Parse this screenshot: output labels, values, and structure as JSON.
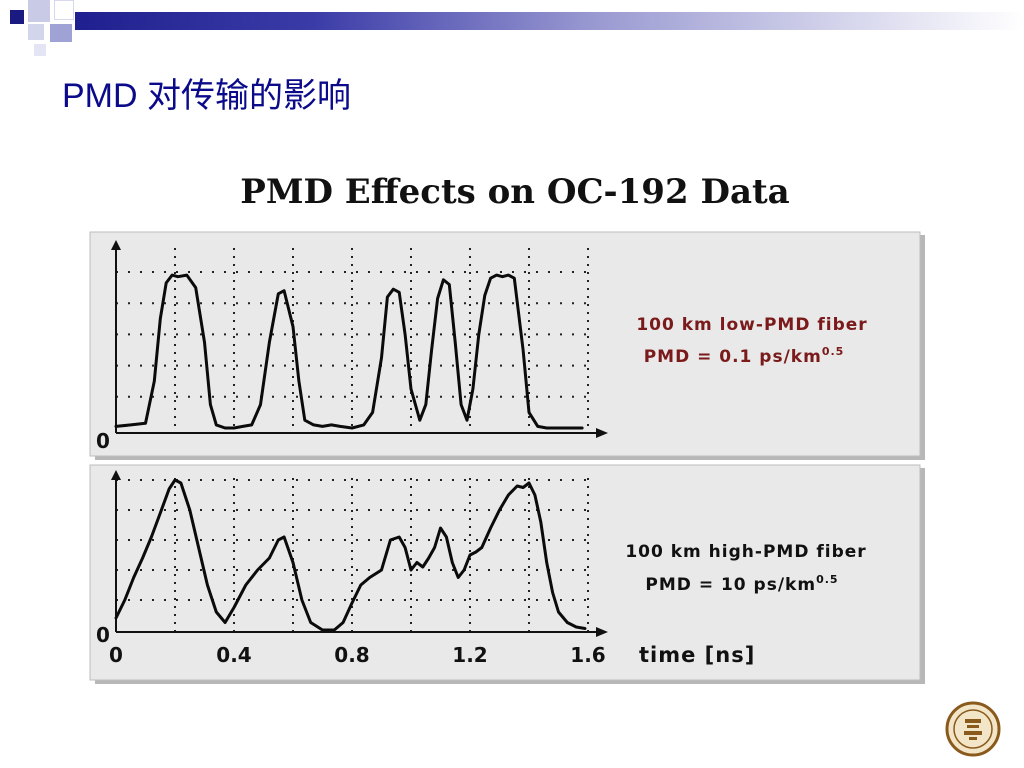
{
  "slide": {
    "title": "PMD 对传输的影响"
  },
  "colors": {
    "title_blue": "#0a0a8a",
    "panel_bg": "#e9e9e9",
    "label_red": "#7a1a1a"
  },
  "chart_data": [
    {
      "type": "line",
      "title": "PMD Effects on OC-192 Data",
      "xlabel": "time [ns]",
      "xlim": [
        0,
        1.6
      ],
      "ylim": [
        0,
        1
      ],
      "grid": true,
      "y_tick_label": "0",
      "annotation": {
        "line1": "100 km low-PMD fiber",
        "line2_prefix": "PMD = 0.1 ps/km",
        "line2_exponent": "0.5"
      },
      "series": [
        {
          "x": [
            0.0,
            0.05,
            0.1,
            0.13,
            0.15,
            0.17,
            0.19,
            0.21,
            0.24,
            0.27,
            0.3,
            0.32,
            0.34,
            0.37,
            0.4,
            0.43,
            0.46,
            0.49,
            0.52,
            0.55,
            0.57,
            0.6,
            0.62,
            0.64,
            0.67,
            0.7,
            0.73,
            0.76,
            0.8,
            0.84,
            0.87,
            0.9,
            0.92,
            0.94,
            0.96,
            0.98,
            1.0,
            1.03,
            1.05,
            1.07,
            1.09,
            1.11,
            1.13,
            1.15,
            1.17,
            1.19,
            1.21,
            1.23,
            1.25,
            1.27,
            1.29,
            1.31,
            1.33,
            1.35,
            1.38,
            1.4,
            1.43,
            1.46,
            1.48,
            1.5,
            1.52,
            1.55,
            1.58
          ],
          "y": [
            0.01,
            0.02,
            0.03,
            0.3,
            0.7,
            0.93,
            0.98,
            0.97,
            0.98,
            0.9,
            0.55,
            0.15,
            0.02,
            0.0,
            0.0,
            0.01,
            0.02,
            0.15,
            0.55,
            0.86,
            0.88,
            0.65,
            0.3,
            0.05,
            0.02,
            0.01,
            0.02,
            0.01,
            0.0,
            0.02,
            0.1,
            0.45,
            0.84,
            0.89,
            0.87,
            0.6,
            0.25,
            0.05,
            0.15,
            0.5,
            0.83,
            0.95,
            0.92,
            0.55,
            0.15,
            0.05,
            0.25,
            0.6,
            0.85,
            0.96,
            0.98,
            0.97,
            0.98,
            0.96,
            0.5,
            0.1,
            0.01,
            0.0,
            0.0,
            0.0,
            0.0,
            0.0,
            0.0
          ]
        }
      ]
    },
    {
      "type": "line",
      "xlabel": "time [ns]",
      "xlim": [
        0,
        1.6
      ],
      "ylim": [
        0,
        1
      ],
      "grid": true,
      "x_ticks": [
        "0",
        "0.4",
        "0.8",
        "1.2",
        "1.6"
      ],
      "y_tick_label": "0",
      "annotation": {
        "line1": "100 km high-PMD fiber",
        "line2_prefix": "PMD = 10 ps/km",
        "line2_exponent": "0.5"
      },
      "series": [
        {
          "x": [
            0.0,
            0.03,
            0.06,
            0.09,
            0.12,
            0.15,
            0.18,
            0.2,
            0.22,
            0.25,
            0.28,
            0.31,
            0.34,
            0.37,
            0.4,
            0.44,
            0.48,
            0.52,
            0.55,
            0.57,
            0.6,
            0.63,
            0.66,
            0.7,
            0.74,
            0.77,
            0.8,
            0.83,
            0.86,
            0.9,
            0.93,
            0.96,
            0.98,
            1.0,
            1.02,
            1.04,
            1.06,
            1.08,
            1.1,
            1.12,
            1.14,
            1.16,
            1.18,
            1.2,
            1.22,
            1.24,
            1.27,
            1.3,
            1.33,
            1.36,
            1.38,
            1.4,
            1.42,
            1.44,
            1.46,
            1.48,
            1.5,
            1.53,
            1.56,
            1.59
          ],
          "y": [
            0.08,
            0.2,
            0.35,
            0.48,
            0.62,
            0.78,
            0.94,
            1.0,
            0.98,
            0.8,
            0.55,
            0.3,
            0.12,
            0.05,
            0.15,
            0.3,
            0.4,
            0.48,
            0.6,
            0.62,
            0.45,
            0.2,
            0.05,
            0.0,
            0.0,
            0.05,
            0.18,
            0.3,
            0.35,
            0.4,
            0.6,
            0.62,
            0.55,
            0.4,
            0.45,
            0.42,
            0.48,
            0.55,
            0.68,
            0.62,
            0.45,
            0.35,
            0.4,
            0.5,
            0.52,
            0.55,
            0.68,
            0.8,
            0.9,
            0.96,
            0.95,
            0.98,
            0.9,
            0.72,
            0.45,
            0.25,
            0.12,
            0.05,
            0.02,
            0.01
          ]
        }
      ]
    }
  ]
}
